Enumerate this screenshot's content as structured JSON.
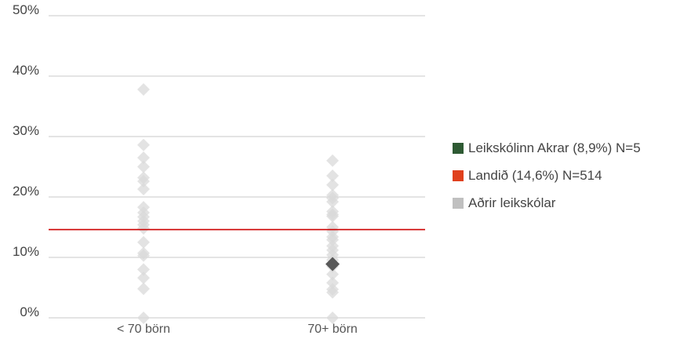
{
  "chart_data": {
    "type": "scatter",
    "title": "",
    "xlabel": "",
    "ylabel": "",
    "ylim": [
      0,
      50
    ],
    "y_ticks": [
      "0%",
      "10%",
      "20%",
      "30%",
      "40%",
      "50%"
    ],
    "categories": [
      "< 70 börn",
      "70+ börn"
    ],
    "grid": true,
    "legend_position": "right",
    "series": [
      {
        "name": "Aðrir leikskólar",
        "color": "#d9d9d9",
        "points": [
          {
            "category": "< 70 börn",
            "y": 37.8
          },
          {
            "category": "< 70 börn",
            "y": 28.6
          },
          {
            "category": "< 70 börn",
            "y": 26.5
          },
          {
            "category": "< 70 börn",
            "y": 25.0
          },
          {
            "category": "< 70 börn",
            "y": 23.2
          },
          {
            "category": "< 70 börn",
            "y": 22.6
          },
          {
            "category": "< 70 börn",
            "y": 21.3
          },
          {
            "category": "< 70 börn",
            "y": 18.3
          },
          {
            "category": "< 70 börn",
            "y": 17.4
          },
          {
            "category": "< 70 börn",
            "y": 16.7
          },
          {
            "category": "< 70 börn",
            "y": 16.0
          },
          {
            "category": "< 70 börn",
            "y": 15.4
          },
          {
            "category": "< 70 börn",
            "y": 14.8
          },
          {
            "category": "< 70 börn",
            "y": 12.5
          },
          {
            "category": "< 70 börn",
            "y": 10.7
          },
          {
            "category": "< 70 börn",
            "y": 10.3
          },
          {
            "category": "< 70 börn",
            "y": 8.0
          },
          {
            "category": "< 70 börn",
            "y": 6.6
          },
          {
            "category": "< 70 börn",
            "y": 4.8
          },
          {
            "category": "< 70 börn",
            "y": 0.0
          },
          {
            "category": "70+ börn",
            "y": 26.0
          },
          {
            "category": "70+ börn",
            "y": 23.5
          },
          {
            "category": "70+ börn",
            "y": 22.0
          },
          {
            "category": "70+ börn",
            "y": 20.3
          },
          {
            "category": "70+ börn",
            "y": 19.8
          },
          {
            "category": "70+ börn",
            "y": 19.2
          },
          {
            "category": "70+ börn",
            "y": 17.6
          },
          {
            "category": "70+ börn",
            "y": 17.1
          },
          {
            "category": "70+ börn",
            "y": 16.8
          },
          {
            "category": "70+ börn",
            "y": 15.0
          },
          {
            "category": "70+ börn",
            "y": 14.3
          },
          {
            "category": "70+ börn",
            "y": 13.4
          },
          {
            "category": "70+ börn",
            "y": 12.9
          },
          {
            "category": "70+ börn",
            "y": 11.9
          },
          {
            "category": "70+ börn",
            "y": 11.2
          },
          {
            "category": "70+ börn",
            "y": 10.4
          },
          {
            "category": "70+ börn",
            "y": 9.6
          },
          {
            "category": "70+ börn",
            "y": 8.5
          },
          {
            "category": "70+ börn",
            "y": 7.2
          },
          {
            "category": "70+ börn",
            "y": 5.8
          },
          {
            "category": "70+ börn",
            "y": 4.7
          },
          {
            "category": "70+ börn",
            "y": 4.2
          },
          {
            "category": "70+ börn",
            "y": 0.0
          }
        ]
      },
      {
        "name": "Leikskólinn Akrar (8,9%) N=5",
        "color": "#595959",
        "points": [
          {
            "category": "70+ börn",
            "y": 8.9
          }
        ]
      }
    ],
    "reference_line": {
      "name": "Landið (14,6%) N=514",
      "y": 14.6,
      "color": "#cc0000"
    },
    "legend": [
      {
        "label": "Leikskólinn Akrar (8,9%) N=5",
        "color": "#2e5a33"
      },
      {
        "label": "Landið (14,6%) N=514",
        "color": "#e0401c"
      },
      {
        "label": "Aðrir leikskólar",
        "color": "#c0c0c0"
      }
    ]
  }
}
